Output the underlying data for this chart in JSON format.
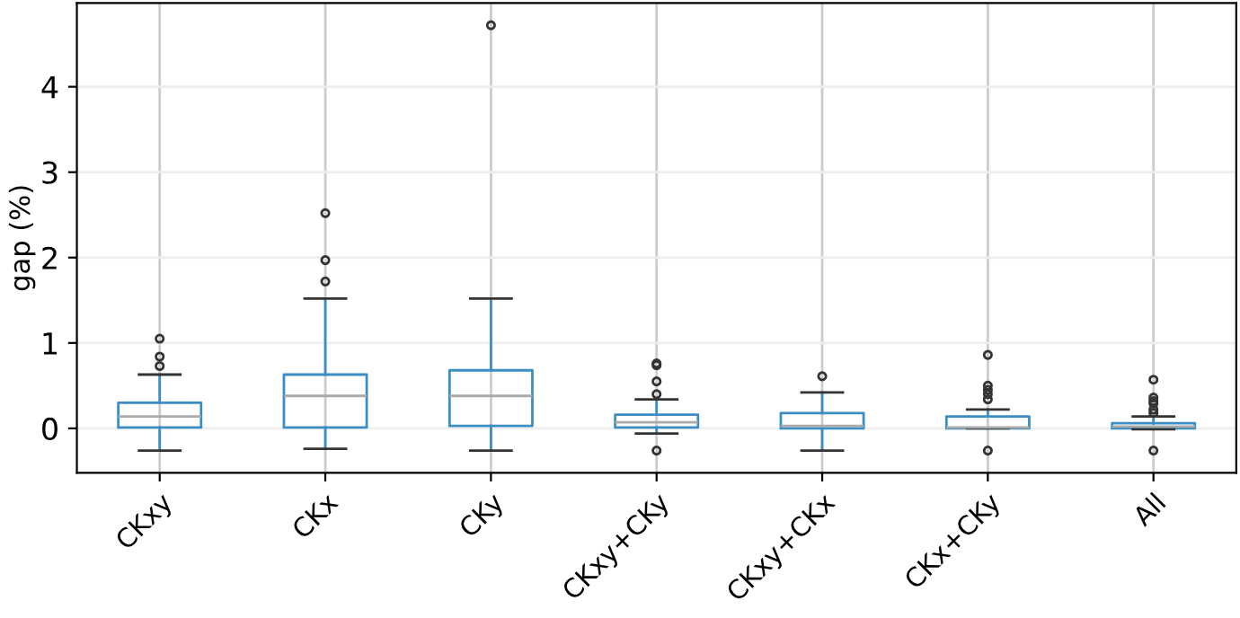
{
  "chart_data": {
    "type": "box",
    "ylabel": "gap (%)",
    "categories": [
      "CKxy",
      "CKx",
      "CKy",
      "CKxy+CKy",
      "CKxy+CKx",
      "CKx+CKy",
      "All"
    ],
    "boxes": [
      {
        "low": -0.26,
        "q1": 0.01,
        "median": 0.14,
        "q3": 0.3,
        "high": 0.63,
        "outliers": [
          0.73,
          0.84,
          1.05
        ]
      },
      {
        "low": -0.24,
        "q1": 0.01,
        "median": 0.38,
        "q3": 0.63,
        "high": 1.52,
        "outliers": [
          1.72,
          1.97,
          2.52
        ]
      },
      {
        "low": -0.26,
        "q1": 0.03,
        "median": 0.38,
        "q3": 0.68,
        "high": 1.52,
        "outliers": [
          4.72
        ]
      },
      {
        "low": -0.06,
        "q1": 0.01,
        "median": 0.07,
        "q3": 0.16,
        "high": 0.34,
        "outliers": [
          -0.26,
          0.4,
          0.55,
          0.74,
          0.76
        ]
      },
      {
        "low": -0.26,
        "q1": 0.0,
        "median": 0.03,
        "q3": 0.18,
        "high": 0.42,
        "outliers": [
          0.61
        ]
      },
      {
        "low": 0.0,
        "q1": 0.0,
        "median": 0.01,
        "q3": 0.14,
        "high": 0.22,
        "outliers": [
          -0.26,
          0.34,
          0.4,
          0.45,
          0.5,
          0.86
        ]
      },
      {
        "low": -0.01,
        "q1": 0.0,
        "median": 0.02,
        "q3": 0.06,
        "high": 0.14,
        "outliers": [
          -0.26,
          0.18,
          0.22,
          0.29,
          0.32,
          0.36,
          0.57
        ]
      }
    ],
    "color": "#3a8ec4",
    "ylim": [
      -0.52,
      4.98
    ],
    "yticks": [
      0,
      1,
      2,
      3,
      4
    ],
    "grid": true
  }
}
